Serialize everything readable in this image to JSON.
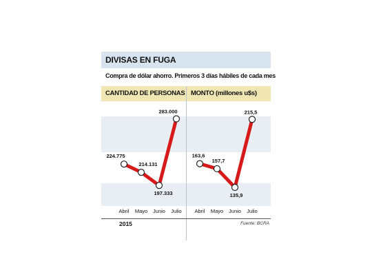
{
  "header": {
    "title": "DIVISAS EN FUGA",
    "subtitle": "Compra de dólar ahorro. Primeros 3 días hábiles de cada mes"
  },
  "footer": {
    "year": "2015",
    "source": "Fuente: BCRA"
  },
  "colors": {
    "title_band": "#d7e3ef",
    "panel_header": "#f0e6b4",
    "plot_band": "#e9eef5",
    "line": "#d61a1a"
  },
  "chart_data": [
    {
      "type": "line",
      "title": "CANTIDAD DE PERSONAS",
      "categories": [
        "Abril",
        "Mayo",
        "Junio",
        "Julio"
      ],
      "values": [
        224775,
        214131,
        197333,
        283000
      ],
      "labels": [
        "224.775",
        "214.131",
        "197.333",
        "283.000"
      ],
      "ylim": [
        185000,
        295000
      ]
    },
    {
      "type": "line",
      "title": "MONTO (millones u$s)",
      "categories": [
        "Abril",
        "Mayo",
        "Junio",
        "Julio"
      ],
      "values": [
        163.6,
        157.7,
        135.9,
        215.5
      ],
      "labels": [
        "163,6",
        "157,7",
        "135,9",
        "215,5"
      ],
      "ylim": [
        127,
        227
      ]
    }
  ]
}
